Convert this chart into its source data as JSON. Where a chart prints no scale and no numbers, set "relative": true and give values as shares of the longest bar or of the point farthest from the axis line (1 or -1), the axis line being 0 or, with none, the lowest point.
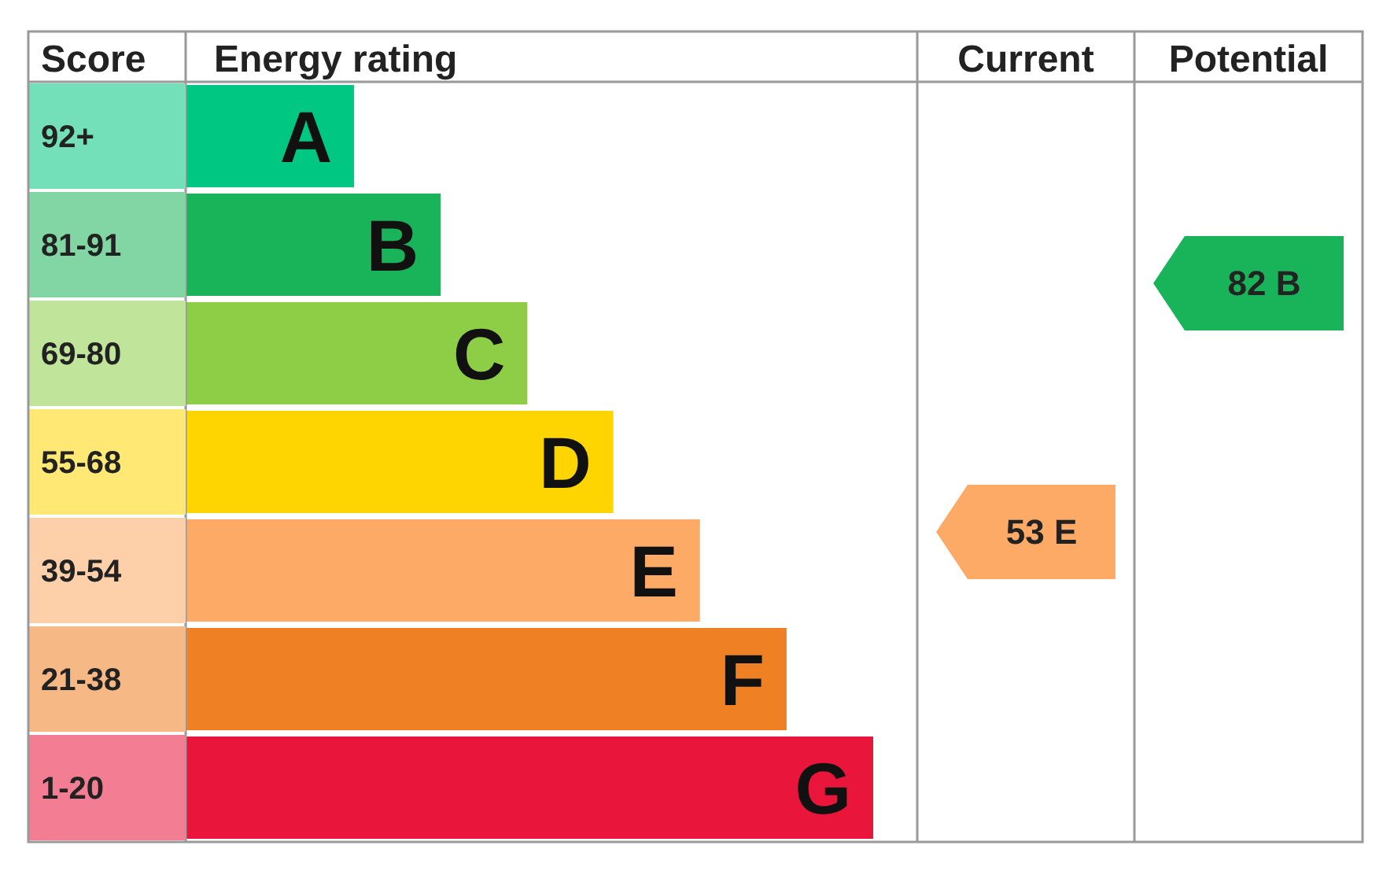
{
  "chart_data": {
    "type": "bar",
    "orientation": "horizontal",
    "relative": true,
    "categories": [
      "92+",
      "81-91",
      "69-80",
      "55-68",
      "39-54",
      "21-38",
      "1-20"
    ],
    "values": [
      0.245,
      0.371,
      0.497,
      0.622,
      0.748,
      0.874,
      1
    ],
    "colors": [
      "#00c781",
      "#19b459",
      "#8dce46",
      "#ffd500",
      "#fcaa65",
      "#ef8023",
      "#e9153b"
    ],
    "annotations": [
      "Score",
      "Energy rating",
      "Current",
      "Potential",
      "A",
      "B",
      "C",
      "D",
      "E",
      "F",
      "G",
      "53 E",
      "82 B"
    ]
  }
}
